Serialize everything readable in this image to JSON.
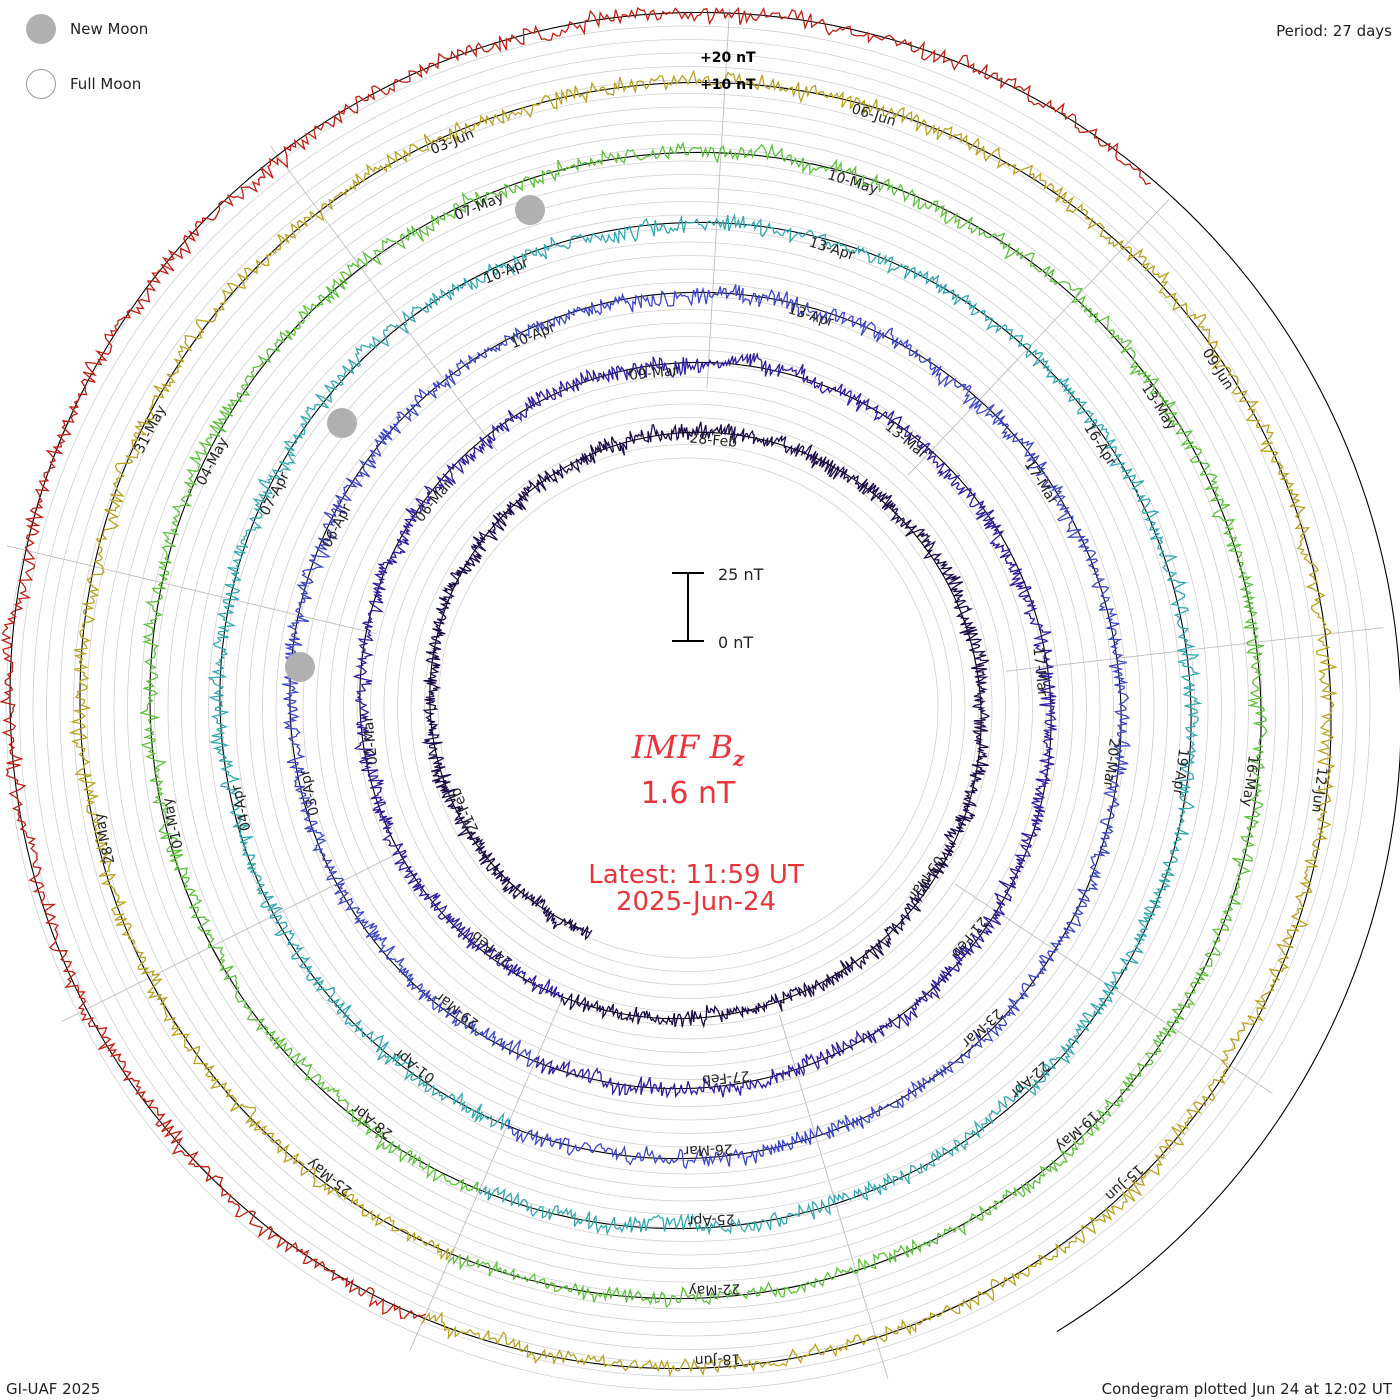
{
  "legend": {
    "new_moon": "New Moon",
    "full_moon": "Full Moon"
  },
  "period_label": "Period: 27 days",
  "footer_left": "GI-UAF 2025",
  "footer_right": "Condegram plotted Jun 24 at 12:02 UT",
  "scale_top": "+20 nT",
  "scale_mid": "+10 nT",
  "scale_bar_top": "25 nT",
  "scale_bar_bottom": "0 nT",
  "center": {
    "param_name": "IMF",
    "param_symbol": "B",
    "param_sub": "z",
    "current_value": "1.6 nT",
    "latest": "Latest: 11:59 UT",
    "date": "2025-Jun-24"
  },
  "chart_data": {
    "type": "spiral condegram",
    "parameter": "IMF Bz",
    "units": "nT",
    "period_days": 27,
    "latest_value": 1.6,
    "scale_nT": [
      0,
      25
    ],
    "rotations": [
      {
        "index": 1,
        "color": "#1c0a4a",
        "date_labels": [
          "21-Feb",
          "28-Feb",
          "03-Mar"
        ]
      },
      {
        "index": 2,
        "color": "#2d1da0",
        "date_labels": [
          "24-Feb",
          "02-Mar",
          "06-Mar",
          "09-Mar",
          "13-Mar",
          "17-Mar",
          "21-Feb",
          "27-Feb"
        ]
      },
      {
        "index": 3,
        "color": "#3c46c8",
        "date_labels": [
          "29-Mar",
          "03-Apr",
          "06-Apr",
          "10-Apr",
          "13-Apr",
          "17-Mar",
          "20-Mar",
          "23-Mar",
          "26-Mar"
        ]
      },
      {
        "index": 4,
        "color": "#30a8b0",
        "date_labels": [
          "01-Apr",
          "04-Apr",
          "07-Apr",
          "10-Apr",
          "13-Apr",
          "16-Apr",
          "19-Apr",
          "22-Apr",
          "25-Apr"
        ]
      },
      {
        "index": 5,
        "color": "#5cc13a",
        "date_labels": [
          "28-Apr",
          "01-May",
          "04-May",
          "07-May",
          "10-May",
          "13-May",
          "16-May",
          "19-May",
          "22-May"
        ]
      },
      {
        "index": 6,
        "color": "#b8a21e",
        "date_labels": [
          "25-May",
          "28-May",
          "31-May",
          "03-Jun",
          "06-Jun",
          "09-Jun",
          "12-Jun",
          "15-Jun",
          "18-Jun"
        ]
      },
      {
        "index": 7,
        "color": "#c21d10",
        "date_labels": []
      }
    ]
  },
  "colors": {
    "accent": "#e8343a",
    "new_moon_fill": "#b0b0b0"
  }
}
